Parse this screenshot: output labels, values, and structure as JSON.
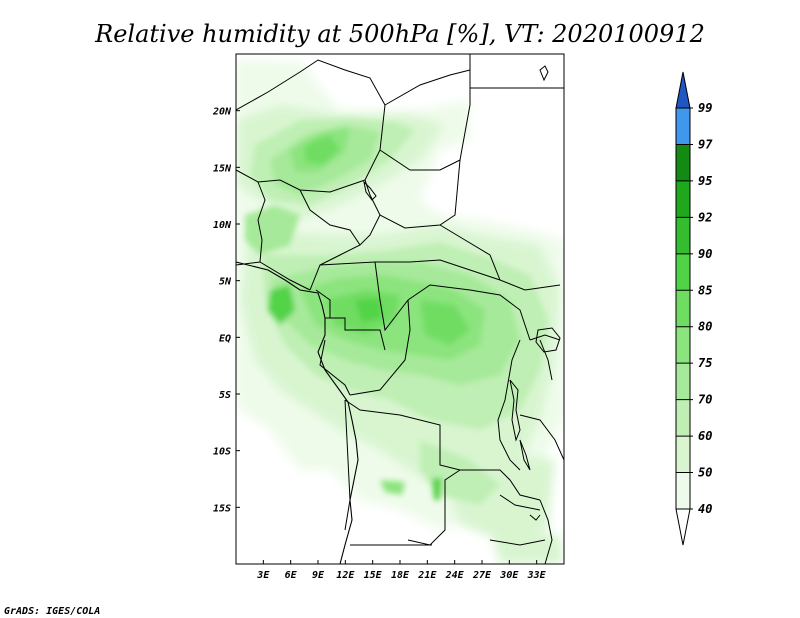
{
  "title": "Relative humidity at 500hPa [%], VT: 2020100912",
  "credit": "GrADS: IGES/COLA",
  "map": {
    "lon_range": [
      0,
      36
    ],
    "lat_range": [
      -20,
      25
    ],
    "lon_ticks": [
      {
        "value": 3,
        "label": "3E"
      },
      {
        "value": 6,
        "label": "6E"
      },
      {
        "value": 9,
        "label": "9E"
      },
      {
        "value": 12,
        "label": "12E"
      },
      {
        "value": 15,
        "label": "15E"
      },
      {
        "value": 18,
        "label": "18E"
      },
      {
        "value": 21,
        "label": "21E"
      },
      {
        "value": 24,
        "label": "24E"
      },
      {
        "value": 27,
        "label": "27E"
      },
      {
        "value": 30,
        "label": "30E"
      },
      {
        "value": 33,
        "label": "33E"
      }
    ],
    "lat_ticks": [
      {
        "value": 20,
        "label": "20N"
      },
      {
        "value": 15,
        "label": "15N"
      },
      {
        "value": 10,
        "label": "10N"
      },
      {
        "value": 5,
        "label": "5N"
      },
      {
        "value": 0,
        "label": "EQ"
      },
      {
        "value": -5,
        "label": "5S"
      },
      {
        "value": -10,
        "label": "10S"
      },
      {
        "value": -15,
        "label": "15S"
      }
    ]
  },
  "colorbar": {
    "levels": [
      {
        "label": "40",
        "color": "#eefbea"
      },
      {
        "label": "50",
        "color": "#d8f5d0"
      },
      {
        "label": "60",
        "color": "#bfefb4"
      },
      {
        "label": "70",
        "color": "#a6e99a"
      },
      {
        "label": "75",
        "color": "#8ce47e"
      },
      {
        "label": "80",
        "color": "#6fdd62"
      },
      {
        "label": "85",
        "color": "#52d347"
      },
      {
        "label": "90",
        "color": "#34be2f"
      },
      {
        "label": "92",
        "color": "#1fa81e"
      },
      {
        "label": "95",
        "color": "#138a13"
      },
      {
        "label": "97",
        "color": "#3f98ee"
      },
      {
        "label": "99",
        "color": "#2266d4"
      }
    ],
    "below_color": "#ffffff",
    "above_color": "#1f56c2"
  }
}
